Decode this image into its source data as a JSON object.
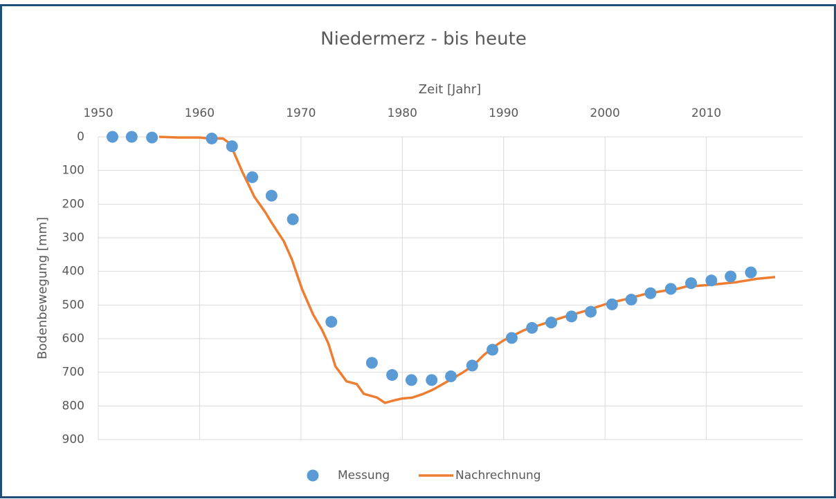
{
  "chart_data": {
    "type": "scatter",
    "title": "Niedermerz - bis heute",
    "x_label": "Zeit [Jahr]",
    "y_label": "Bodenbewegung [mm]",
    "xlim": [
      1950,
      2020
    ],
    "xticks": [
      1950,
      1960,
      1970,
      1980,
      1990,
      2000,
      2010
    ],
    "x_axis_position": "top",
    "ylim": [
      0,
      900
    ],
    "yticks": [
      0,
      100,
      200,
      300,
      400,
      500,
      600,
      700,
      800,
      900
    ],
    "y_inverted": true,
    "grid": true,
    "legend": "bottom",
    "series": [
      {
        "name": "Messung",
        "type": "scatter",
        "color": "#5b9bd5",
        "x": [
          1951.4,
          1953.3,
          1955.3,
          1961.2,
          1963.2,
          1965.2,
          1967.1,
          1969.2,
          1973.0,
          1977.0,
          1979.0,
          1980.9,
          1982.9,
          1984.8,
          1986.9,
          1988.9,
          1990.8,
          1992.8,
          1994.7,
          1996.7,
          1998.6,
          2000.7,
          2002.6,
          2004.5,
          2006.5,
          2008.5,
          2010.5,
          2012.4,
          2014.4
        ],
        "values": [
          0,
          0,
          2,
          5,
          28,
          120,
          175,
          245,
          550,
          672,
          708,
          723,
          723,
          712,
          680,
          633,
          598,
          568,
          552,
          534,
          520,
          498,
          484,
          465,
          452,
          435,
          427,
          415,
          403
        ]
      },
      {
        "name": "Nachrechnung",
        "type": "line",
        "color": "#ed7d31",
        "x": [
          1956,
          1958,
          1960,
          1961,
          1962.3,
          1963,
          1964.2,
          1965.4,
          1966.5,
          1967.1,
          1968.3,
          1969.1,
          1970.1,
          1971.2,
          1972.1,
          1972.7,
          1973.4,
          1974.5,
          1975.5,
          1976.2,
          1977.5,
          1978.3,
          1979,
          1980,
          1981,
          1982,
          1983,
          1984,
          1985,
          1986,
          1987,
          1988,
          1989,
          1990,
          1991,
          1992,
          1993,
          1994,
          1995,
          1996,
          1997,
          1998,
          1999,
          2000,
          2001,
          2002,
          2003,
          2004,
          2005,
          2006,
          2007,
          2008,
          2009,
          2010,
          2011,
          2012,
          2013,
          2014,
          2015,
          2016.8
        ],
        "values": [
          0,
          2,
          2,
          5,
          5,
          20,
          103,
          178,
          225,
          255,
          310,
          364,
          452,
          528,
          575,
          614,
          682,
          727,
          735,
          764,
          775,
          791,
          785,
          778,
          775,
          765,
          752,
          735,
          718,
          700,
          680,
          650,
          625,
          605,
          590,
          575,
          565,
          555,
          545,
          535,
          527,
          518,
          508,
          498,
          490,
          483,
          475,
          467,
          462,
          457,
          453,
          445,
          443,
          441,
          438,
          435,
          432,
          427,
          422,
          417
        ]
      }
    ]
  }
}
